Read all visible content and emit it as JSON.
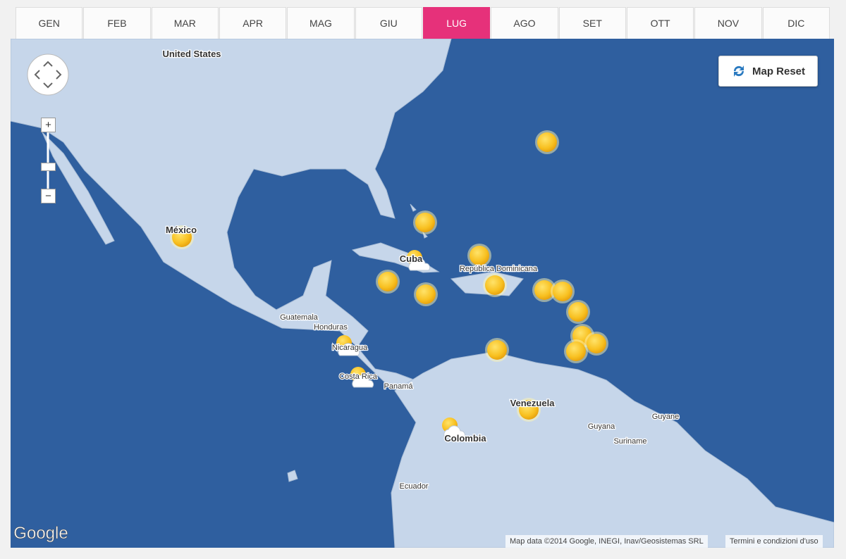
{
  "tabs": [
    "GEN",
    "FEB",
    "MAR",
    "APR",
    "MAG",
    "GIU",
    "LUG",
    "AGO",
    "SET",
    "OTT",
    "NOV",
    "DIC"
  ],
  "controls": {
    "map_reset": "Map Reset",
    "zoom_in": "+",
    "zoom_out": "−"
  },
  "map_labels": [
    "United States",
    "México",
    "Cuba",
    "República Dominicana",
    "Guatemala",
    "Honduras",
    "Nicaragua",
    "Costa Rica",
    "Panamá",
    "Venezuela",
    "Colombia",
    "Guyana",
    "Guyane",
    "Suriname",
    "Ecuador"
  ],
  "google_logo": "Google",
  "attribution": "Map data ©2014 Google, INEGI, Inav/Geosistemas SRL",
  "terms": "Termini e condizioni d'uso"
}
